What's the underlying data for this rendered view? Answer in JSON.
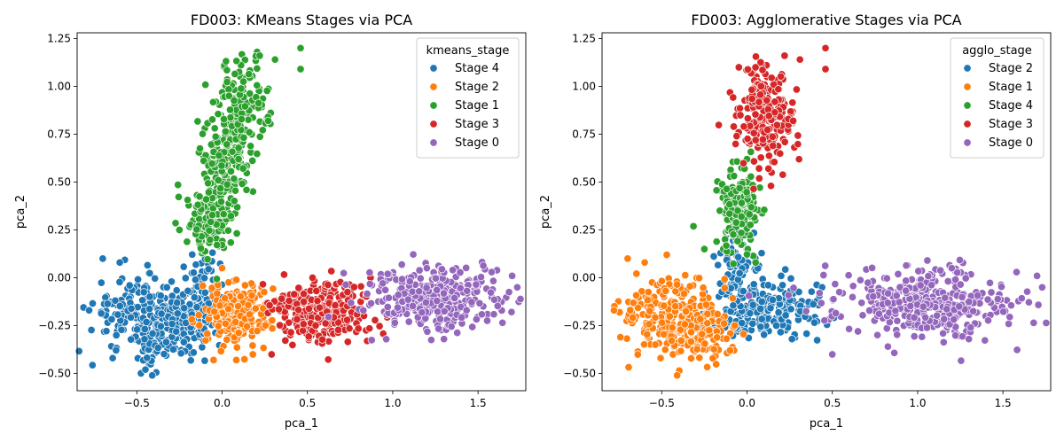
{
  "colors": {
    "c0": "#1f77b4",
    "c1": "#ff7f0e",
    "c2": "#2ca02c",
    "c3": "#d62728",
    "c4": "#9467bd"
  },
  "chart_data": [
    {
      "type": "scatter",
      "title": "FD003: KMeans Stages via PCA",
      "xlabel": "pca_1",
      "ylabel": "pca_2",
      "xlim": [
        -0.85,
        1.78
      ],
      "ylim": [
        -0.59,
        1.28
      ],
      "xticks": [
        -0.5,
        0.0,
        0.5,
        1.0,
        1.5
      ],
      "xtick_labels": [
        "−0.5",
        "0.0",
        "0.5",
        "1.0",
        "1.5"
      ],
      "yticks": [
        -0.5,
        -0.25,
        0.0,
        0.25,
        0.5,
        0.75,
        1.0,
        1.25
      ],
      "ytick_labels": [
        "−0.50",
        "−0.25",
        "0.00",
        "0.25",
        "0.50",
        "0.75",
        "1.00",
        "1.25"
      ],
      "grid": false,
      "legend_title": "kmeans_stage",
      "legend_position": "top-right",
      "series": [
        {
          "name": "Stage 4",
          "color": "#1f77b4",
          "clusters": [
            {
              "n": 170,
              "cx": -0.5,
              "cy": -0.18,
              "sx": 0.13,
              "sy": 0.1
            },
            {
              "n": 140,
              "cx": -0.3,
              "cy": -0.27,
              "sx": 0.09,
              "sy": 0.08
            },
            {
              "n": 110,
              "cx": -0.13,
              "cy": -0.12,
              "sx": 0.06,
              "sy": 0.12
            }
          ],
          "points": [
            [
              -0.7,
              0.1
            ],
            [
              -0.6,
              0.08
            ],
            [
              -0.41,
              -0.51
            ],
            [
              -0.45,
              -0.48
            ],
            [
              -0.78,
              -0.17
            ]
          ]
        },
        {
          "name": "Stage 2",
          "color": "#ff7f0e",
          "clusters": [
            {
              "n": 230,
              "cx": 0.08,
              "cy": -0.19,
              "sx": 0.1,
              "sy": 0.08
            }
          ],
          "points": [
            [
              0.0,
              0.05
            ],
            [
              -0.05,
              -0.43
            ],
            [
              0.18,
              -0.4
            ]
          ]
        },
        {
          "name": "Stage 1",
          "color": "#2ca02c",
          "clusters": [
            {
              "n": 140,
              "cx": -0.05,
              "cy": 0.33,
              "sx": 0.07,
              "sy": 0.1
            },
            {
              "n": 150,
              "cx": 0.03,
              "cy": 0.62,
              "sx": 0.07,
              "sy": 0.12
            },
            {
              "n": 130,
              "cx": 0.12,
              "cy": 0.92,
              "sx": 0.08,
              "sy": 0.1
            }
          ],
          "points": [
            [
              0.46,
              1.2
            ],
            [
              0.46,
              1.09
            ],
            [
              0.31,
              1.14
            ],
            [
              0.22,
              1.16
            ],
            [
              -0.25,
              0.25
            ],
            [
              0.27,
              0.82
            ]
          ]
        },
        {
          "name": "Stage 3",
          "color": "#d62728",
          "clusters": [
            {
              "n": 270,
              "cx": 0.58,
              "cy": -0.17,
              "sx": 0.15,
              "sy": 0.08
            }
          ],
          "points": [
            [
              0.29,
              -0.4
            ],
            [
              0.53,
              0.0
            ],
            [
              0.87,
              0.0
            ],
            [
              0.85,
              -0.33
            ]
          ]
        },
        {
          "name": "Stage 0",
          "color": "#9467bd",
          "clusters": [
            {
              "n": 330,
              "cx": 1.25,
              "cy": -0.11,
              "sx": 0.2,
              "sy": 0.08
            }
          ],
          "points": [
            [
              1.7,
              0.01
            ],
            [
              1.73,
              -0.05
            ],
            [
              1.58,
              0.03
            ],
            [
              1.3,
              -0.32
            ],
            [
              1.2,
              0.05
            ],
            [
              0.97,
              0.02
            ]
          ]
        }
      ]
    },
    {
      "type": "scatter",
      "title": "FD003: Agglomerative Stages via PCA",
      "xlabel": "pca_1",
      "ylabel": "pca_2",
      "xlim": [
        -0.85,
        1.78
      ],
      "ylim": [
        -0.59,
        1.28
      ],
      "xticks": [
        -0.5,
        0.0,
        0.5,
        1.0,
        1.5
      ],
      "xtick_labels": [
        "−0.5",
        "0.0",
        "0.5",
        "1.0",
        "1.5"
      ],
      "yticks": [
        -0.5,
        -0.25,
        0.0,
        0.25,
        0.5,
        0.75,
        1.0,
        1.25
      ],
      "ytick_labels": [
        "−0.50",
        "−0.25",
        "0.00",
        "0.25",
        "0.50",
        "0.75",
        "1.00",
        "1.25"
      ],
      "grid": false,
      "legend_title": "agglo_stage",
      "legend_position": "top-right",
      "series": [
        {
          "name": "Stage 2",
          "color": "#1f77b4",
          "clusters": [
            {
              "n": 220,
              "cx": 0.12,
              "cy": -0.17,
              "sx": 0.16,
              "sy": 0.08
            },
            {
              "n": 70,
              "cx": -0.06,
              "cy": 0.08,
              "sx": 0.06,
              "sy": 0.08
            }
          ],
          "points": [
            [
              -0.1,
              0.24
            ],
            [
              0.2,
              0.01
            ],
            [
              0.44,
              -0.05
            ],
            [
              -0.34,
              -0.2
            ]
          ]
        },
        {
          "name": "Stage 1",
          "color": "#ff7f0e",
          "clusters": [
            {
              "n": 210,
              "cx": -0.47,
              "cy": -0.2,
              "sx": 0.14,
              "sy": 0.1
            },
            {
              "n": 110,
              "cx": -0.25,
              "cy": -0.28,
              "sx": 0.09,
              "sy": 0.07
            }
          ],
          "points": [
            [
              -0.7,
              0.1
            ],
            [
              -0.6,
              0.08
            ],
            [
              -0.41,
              -0.51
            ],
            [
              -0.78,
              -0.17
            ],
            [
              -0.1,
              -0.38
            ]
          ]
        },
        {
          "name": "Stage 4",
          "color": "#2ca02c",
          "clusters": [
            {
              "n": 170,
              "cx": -0.05,
              "cy": 0.36,
              "sx": 0.06,
              "sy": 0.1
            }
          ],
          "points": [
            [
              -0.25,
              0.15
            ],
            [
              0.0,
              0.62
            ],
            [
              0.05,
              0.08
            ]
          ]
        },
        {
          "name": "Stage 3",
          "color": "#d62728",
          "clusters": [
            {
              "n": 240,
              "cx": 0.1,
              "cy": 0.83,
              "sx": 0.08,
              "sy": 0.13
            }
          ],
          "points": [
            [
              0.46,
              1.2
            ],
            [
              0.46,
              1.09
            ],
            [
              0.31,
              1.14
            ],
            [
              0.22,
              1.16
            ],
            [
              0.27,
              0.82
            ],
            [
              0.14,
              0.48
            ]
          ]
        },
        {
          "name": "Stage 0",
          "color": "#9467bd",
          "clusters": [
            {
              "n": 380,
              "cx": 1.05,
              "cy": -0.13,
              "sx": 0.26,
              "sy": 0.09
            }
          ],
          "points": [
            [
              1.7,
              0.01
            ],
            [
              1.73,
              -0.05
            ],
            [
              1.58,
              0.03
            ],
            [
              1.3,
              -0.32
            ],
            [
              1.2,
              0.05
            ],
            [
              0.5,
              -0.4
            ]
          ]
        }
      ]
    }
  ]
}
